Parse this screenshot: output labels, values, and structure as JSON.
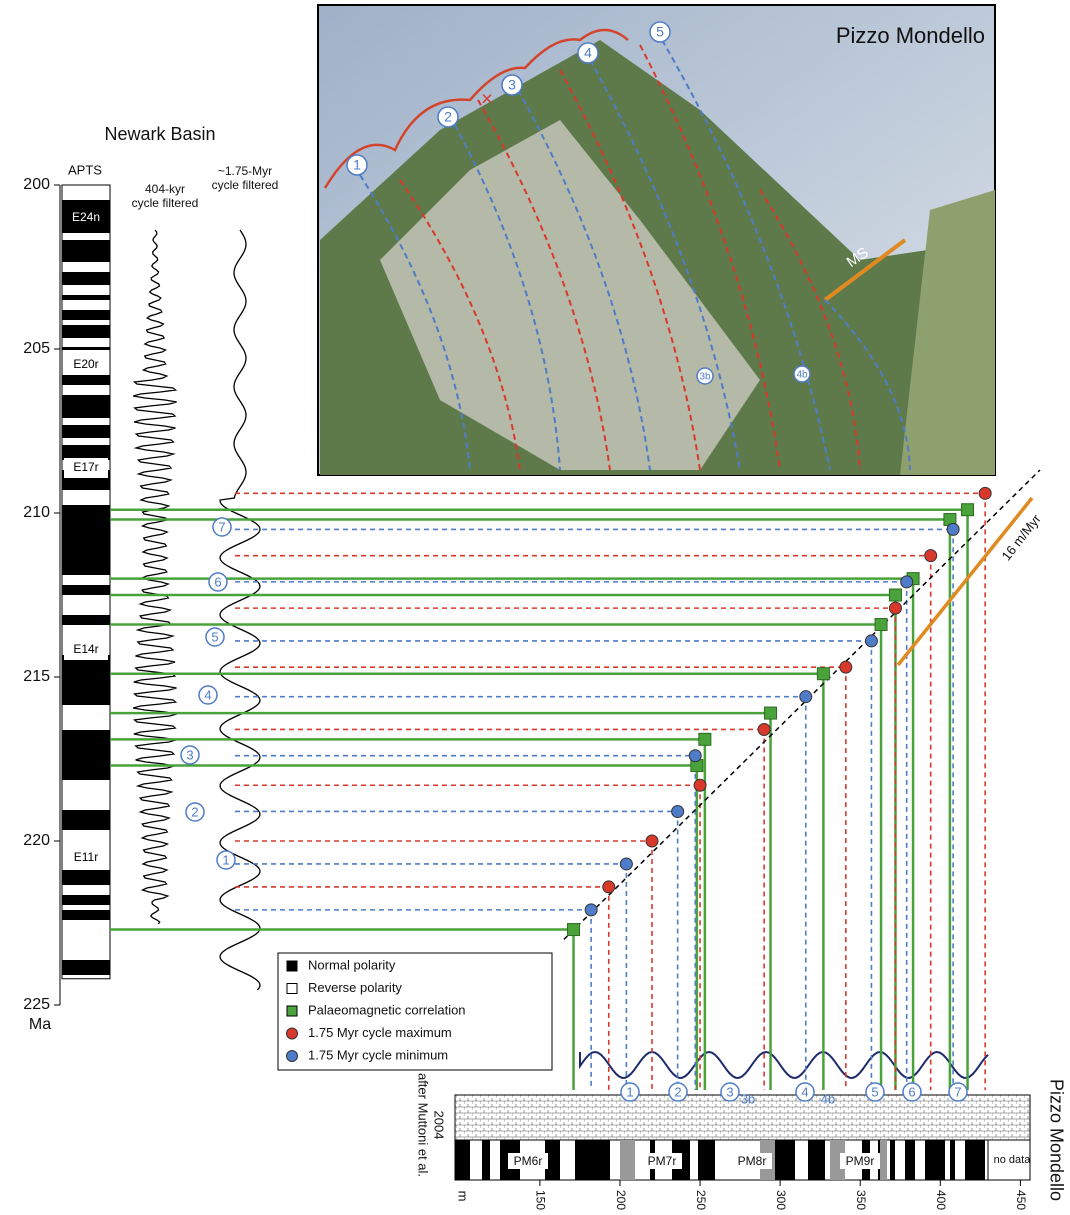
{
  "photo": {
    "title": "Pizzo Mondello",
    "cycles": [
      "1",
      "2",
      "3",
      "4",
      "5",
      "3b",
      "4b"
    ],
    "ms": "MS"
  },
  "newark": {
    "title": "Newark Basin",
    "apts": "APTS",
    "filter_404": [
      "404-kyr",
      "cycle filtered"
    ],
    "filter_175": [
      "~1.75-Myr",
      "cycle filtered"
    ],
    "chrons": [
      "E24n",
      "E20r",
      "E17r",
      "E14r",
      "E11r"
    ],
    "age_unit": "Ma",
    "age_lim": [
      200,
      225
    ],
    "age_ticks": [
      200,
      205,
      210,
      215,
      220,
      225
    ],
    "cycles": [
      "7",
      "6",
      "5",
      "4",
      "3",
      "2",
      "1"
    ]
  },
  "legend": {
    "items": [
      "Normal polarity",
      "Reverse polarity",
      "Palaeomagnetic correlation",
      "1.75 Myr cycle maximum",
      "1.75 Myr cycle minimum"
    ]
  },
  "points": {
    "palaeomagnetic": {
      "depth": [
        171,
        248,
        253,
        294,
        327,
        363,
        372,
        383,
        406,
        417
      ],
      "age": [
        222.7,
        217.7,
        216.9,
        216.1,
        214.9,
        213.4,
        212.5,
        212.0,
        210.2,
        209.9
      ]
    },
    "maximum": {
      "depth": [
        193,
        220,
        250,
        290,
        341,
        372,
        394,
        428
      ],
      "age": [
        221.4,
        220.0,
        218.3,
        216.6,
        214.7,
        212.9,
        211.3,
        209.4
      ]
    },
    "minimum": {
      "depth": [
        182,
        204,
        236,
        247,
        316,
        357,
        379,
        408
      ],
      "age": [
        222.1,
        220.7,
        219.1,
        217.4,
        215.6,
        213.9,
        212.1,
        210.5
      ]
    }
  },
  "section": {
    "title": "Pizzo Mondello",
    "source": [
      "after Muttoni et al.",
      "2004"
    ],
    "chrons": [
      "PM6r",
      "PM7r",
      "PM8r",
      "PM9r"
    ],
    "no_data": "no data",
    "depth_unit": "m",
    "depth_lim": [
      97,
      456
    ],
    "depth_ticks": [
      150,
      200,
      250,
      300,
      350,
      400,
      450
    ],
    "cycles": [
      "1",
      "2",
      "3",
      "3b",
      "4",
      "4b",
      "5",
      "6",
      "7"
    ],
    "rate": "16 m/Myr"
  }
}
